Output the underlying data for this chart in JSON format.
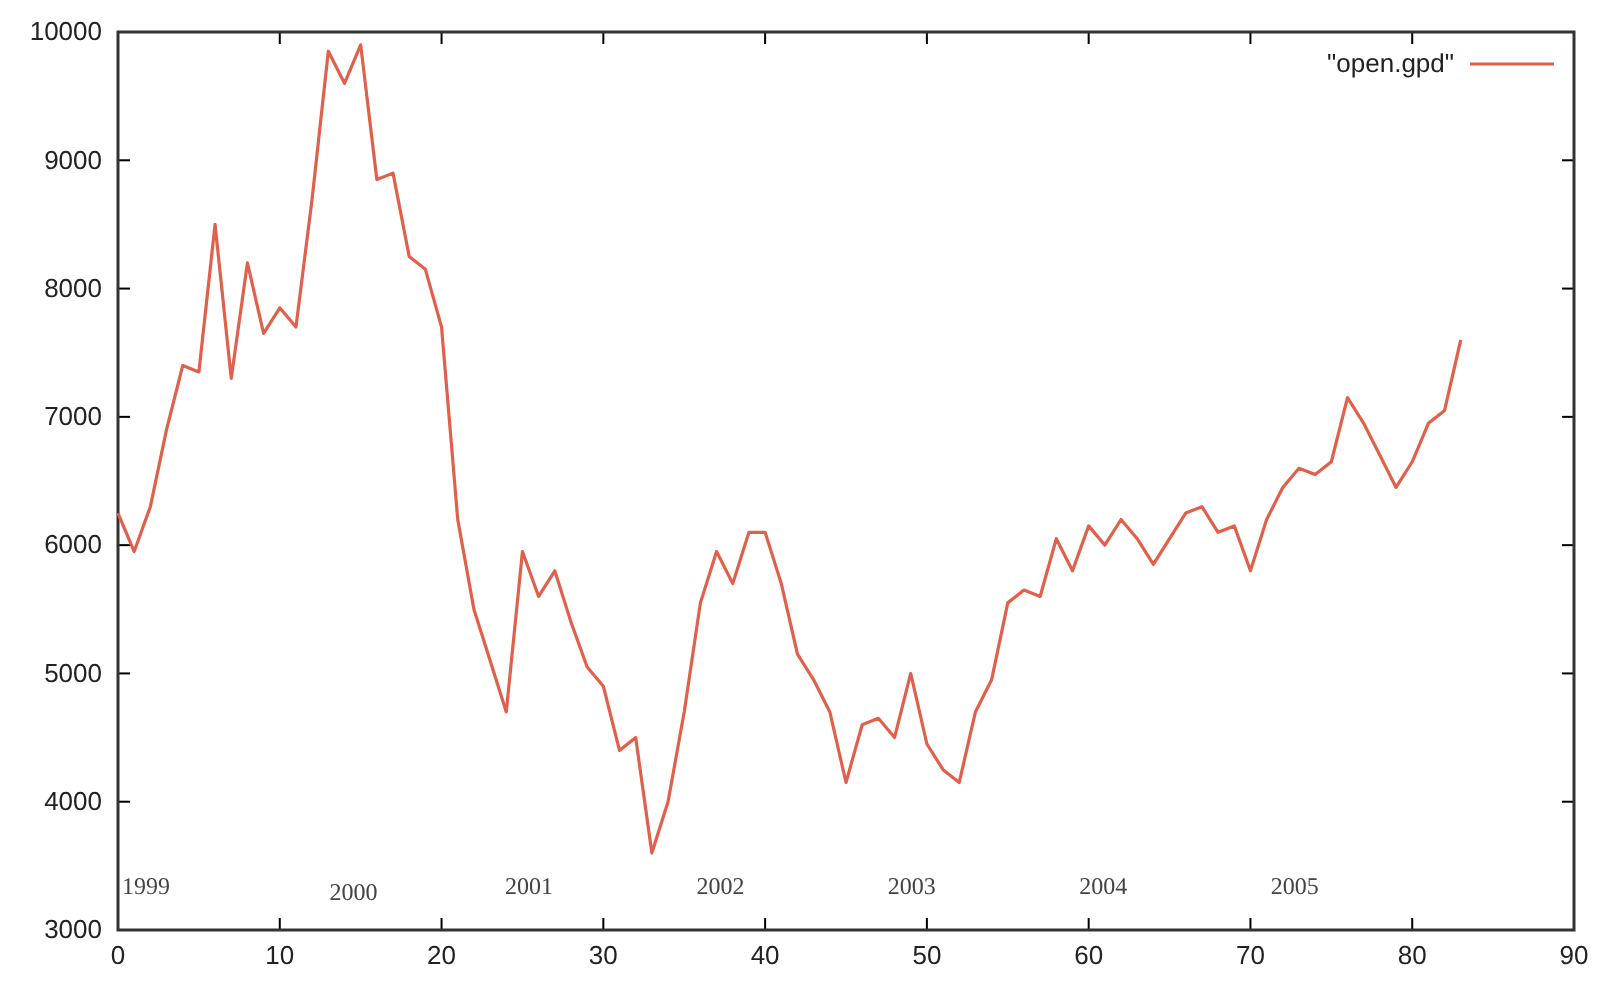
{
  "chart_data": {
    "type": "line",
    "xlim": [
      0,
      90
    ],
    "ylim": [
      3000,
      10000
    ],
    "xticks": [
      0,
      10,
      20,
      30,
      40,
      50,
      60,
      70,
      80,
      90
    ],
    "yticks": [
      3000,
      4000,
      5000,
      6000,
      7000,
      8000,
      9000,
      10000
    ],
    "grid": false,
    "legend": "top right",
    "x": [
      0,
      1,
      2,
      3,
      4,
      5,
      6,
      7,
      8,
      9,
      10,
      11,
      12,
      13,
      14,
      15,
      16,
      17,
      18,
      19,
      20,
      21,
      22,
      23,
      24,
      25,
      26,
      27,
      28,
      29,
      30,
      31,
      32,
      33,
      34,
      35,
      36,
      37,
      38,
      39,
      40,
      41,
      42,
      43,
      44,
      45,
      46,
      47,
      48,
      49,
      50,
      51,
      52,
      53,
      54,
      55,
      56,
      57,
      58,
      59,
      60,
      61,
      62,
      63,
      64,
      65,
      66,
      67,
      68,
      69,
      70,
      71,
      72,
      73,
      74,
      75,
      76,
      77,
      78,
      79,
      80,
      81,
      82,
      83
    ],
    "series": [
      {
        "name": "\"open.gpd\"",
        "color": "#e0604c",
        "values": [
          6250,
          5950,
          6300,
          6900,
          7400,
          7350,
          8500,
          7300,
          8200,
          7650,
          7850,
          7700,
          8700,
          9850,
          9600,
          9900,
          8850,
          8900,
          8250,
          8150,
          7700,
          6200,
          5500,
          5100,
          4700,
          5950,
          5600,
          5800,
          5400,
          5050,
          4900,
          4400,
          4500,
          3600,
          4000,
          4700,
          5550,
          5950,
          5700,
          6100,
          6100,
          5700,
          5150,
          4950,
          4700,
          4150,
          4600,
          4650,
          4500,
          5000,
          4450,
          4250,
          4150,
          4700,
          4950,
          5550,
          5650,
          5600,
          6050,
          5800,
          6150,
          6000,
          6200,
          6050,
          5850,
          6050,
          6250,
          6300,
          6100,
          6150,
          5800,
          6200,
          6450,
          6600,
          6550,
          6650,
          7150,
          6950,
          6700,
          6450,
          6650,
          6950,
          7050,
          7600
        ]
      }
    ],
    "annotations": [
      "1999",
      "2000",
      "2001",
      "2002",
      "2003",
      "2004",
      "2005"
    ]
  }
}
